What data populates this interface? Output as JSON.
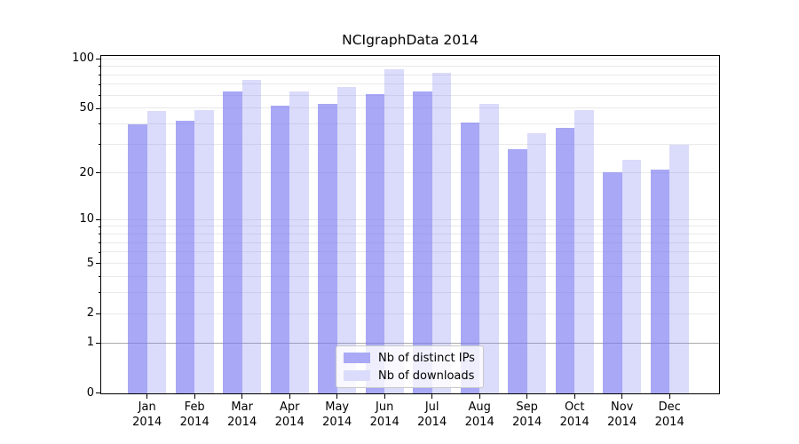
{
  "chart_data": {
    "type": "bar",
    "title": "NCIgraphData 2014",
    "categories": [
      "Jan",
      "Feb",
      "Mar",
      "Apr",
      "May",
      "Jun",
      "Jul",
      "Aug",
      "Sep",
      "Oct",
      "Nov",
      "Dec"
    ],
    "x_second_line": "2014",
    "series": [
      {
        "name": "Nb of distinct IPs",
        "values": [
          40,
          42,
          63,
          52,
          53,
          61,
          63,
          41,
          28,
          38,
          20,
          21
        ]
      },
      {
        "name": "Nb of downloads",
        "values": [
          48,
          49,
          74,
          63,
          67,
          86,
          82,
          53,
          35,
          49,
          24,
          30
        ]
      }
    ],
    "yscale": "log(1+y)",
    "ylim": [
      0,
      104
    ],
    "yticks": [
      0,
      1,
      2,
      5,
      10,
      20,
      50,
      100
    ],
    "minor_gridlines": [
      3,
      4,
      6,
      7,
      8,
      9,
      30,
      40,
      60,
      70,
      80,
      90
    ],
    "grid": true,
    "legend_position": "lower center",
    "colors": {
      "bar_ips": "rgba(122,122,241,0.65)",
      "bar_downloads": "rgba(122,122,241,0.27)",
      "legend_ips": "#a9a9f6",
      "legend_downloads": "#dbdbfb",
      "gridline": "#e9e9e9",
      "gridline_at_1": "#a9a9a9",
      "axis": "#000000"
    }
  }
}
